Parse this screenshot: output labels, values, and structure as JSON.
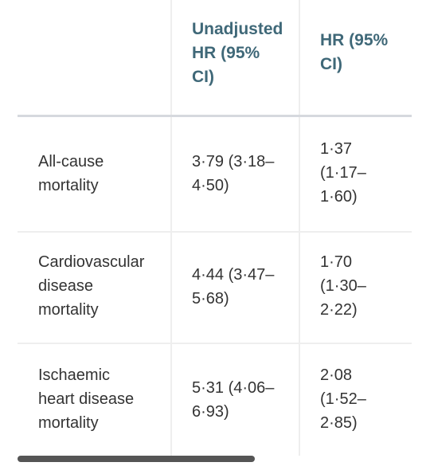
{
  "table": {
    "headers": {
      "col1": [],
      "col2": [
        "Unadjusted",
        "HR (95%",
        "CI)"
      ],
      "col3": [
        "HR (95%",
        "CI)"
      ]
    },
    "rows": [
      {
        "label": [
          "All-cause",
          "mortality"
        ],
        "unadjusted": [
          "3·79 (3·18–",
          "4·50)"
        ],
        "hr": [
          "1·37",
          "(1·17–",
          "1·60)"
        ]
      },
      {
        "label": [
          "Cardiovascular",
          "disease",
          "mortality"
        ],
        "unadjusted": [
          "4·44 (3·47–",
          "5·68)"
        ],
        "hr": [
          "1·70",
          "(1·30–",
          "2·22)"
        ]
      },
      {
        "label": [
          "Ischaemic",
          "heart disease",
          "mortality"
        ],
        "unadjusted": [
          "5·31 (4·06–",
          "6·93)"
        ],
        "hr": [
          "2·08",
          "(1·52–",
          "2·85)"
        ]
      }
    ]
  },
  "colors": {
    "header_text": "#3f6878",
    "body_text": "#333333",
    "scrollbar": "#555555"
  }
}
